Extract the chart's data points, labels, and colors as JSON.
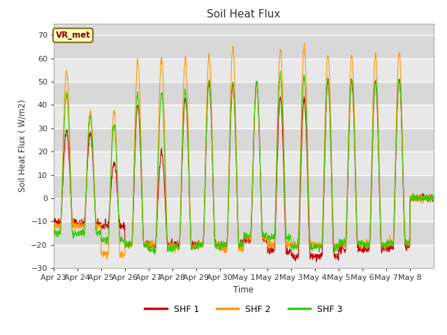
{
  "title": "Soil Heat Flux",
  "xlabel": "Time",
  "ylabel": "Soil Heat Flux ( W/m2)",
  "ylim": [
    -30,
    75
  ],
  "yticks": [
    -30,
    -20,
    -10,
    0,
    10,
    20,
    30,
    40,
    50,
    60,
    70
  ],
  "colors": {
    "SHF 1": "#cc0000",
    "SHF 2": "#ff9900",
    "SHF 3": "#33cc00"
  },
  "bg_color": "#dcdcdc",
  "band_colors": [
    "#e8e8e8",
    "#d8d8d8"
  ],
  "legend_label": "VR_met",
  "x_tick_labels": [
    "Apr 23",
    "Apr 24",
    "Apr 25",
    "Apr 26",
    "Apr 27",
    "Apr 28",
    "Apr 29",
    "Apr 30",
    "May 1",
    "May 2",
    "May 3",
    "May 4",
    "May 5",
    "May 6",
    "May 7",
    "May 8"
  ],
  "n_days": 16,
  "dt_hours": 0.25,
  "day_peak_shf1": [
    29,
    28,
    15,
    40,
    20,
    43,
    50,
    49,
    49,
    43,
    42,
    50,
    51,
    50,
    51
  ],
  "day_peak_shf2": [
    55,
    37,
    38,
    59,
    60,
    60,
    61,
    65,
    50,
    64,
    65,
    62,
    61,
    61,
    62
  ],
  "day_peak_shf3": [
    45,
    35,
    31,
    44,
    45,
    46,
    50,
    50,
    50,
    53,
    52,
    51,
    51,
    51,
    51
  ],
  "night_min_shf1": [
    -10,
    -11,
    -12,
    -20,
    -20,
    -20,
    -20,
    -20,
    -18,
    -23,
    -25,
    -25,
    -22,
    -22,
    -21
  ],
  "night_min_shf2": [
    -12,
    -12,
    -24,
    -20,
    -20,
    -21,
    -20,
    -22,
    -17,
    -20,
    -20,
    -20,
    -20,
    -20,
    -19
  ],
  "night_min_shf3": [
    -15,
    -15,
    -18,
    -20,
    -22,
    -21,
    -20,
    -20,
    -16,
    -17,
    -21,
    -21,
    -19,
    -20,
    -19
  ]
}
